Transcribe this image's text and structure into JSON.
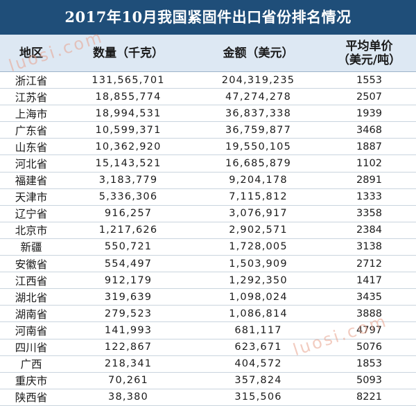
{
  "title": "2017年10月我国紧固件出口省份排名情况",
  "headers": {
    "region": "地区",
    "quantity": "数量（千克）",
    "amount": "金额（美元）",
    "unit_price_line1": "平均单价",
    "unit_price_line2": "（美元/吨）"
  },
  "rows": [
    {
      "region": "浙江省",
      "quantity": "131,565,701",
      "amount": "204,319,235",
      "price": "1553"
    },
    {
      "region": "江苏省",
      "quantity": "18,855,774",
      "amount": "47,274,278",
      "price": "2507"
    },
    {
      "region": "上海市",
      "quantity": "18,994,531",
      "amount": "36,837,338",
      "price": "1939"
    },
    {
      "region": "广东省",
      "quantity": "10,599,371",
      "amount": "36,759,877",
      "price": "3468"
    },
    {
      "region": "山东省",
      "quantity": "10,362,920",
      "amount": "19,550,105",
      "price": "1887"
    },
    {
      "region": "河北省",
      "quantity": "15,143,521",
      "amount": "16,685,879",
      "price": "1102"
    },
    {
      "region": "福建省",
      "quantity": "3,183,779",
      "amount": "9,204,178",
      "price": "2891"
    },
    {
      "region": "天津市",
      "quantity": "5,336,306",
      "amount": "7,115,812",
      "price": "1333"
    },
    {
      "region": "辽宁省",
      "quantity": "916,257",
      "amount": "3,076,917",
      "price": "3358"
    },
    {
      "region": "北京市",
      "quantity": "1,217,626",
      "amount": "2,902,571",
      "price": "2384"
    },
    {
      "region": "新疆",
      "quantity": "550,721",
      "amount": "1,728,005",
      "price": "3138"
    },
    {
      "region": "安徽省",
      "quantity": "554,497",
      "amount": "1,503,909",
      "price": "2712"
    },
    {
      "region": "江西省",
      "quantity": "912,179",
      "amount": "1,292,350",
      "price": "1417"
    },
    {
      "region": "湖北省",
      "quantity": "319,639",
      "amount": "1,098,024",
      "price": "3435"
    },
    {
      "region": "湖南省",
      "quantity": "279,523",
      "amount": "1,086,814",
      "price": "3888"
    },
    {
      "region": "河南省",
      "quantity": "141,993",
      "amount": "681,117",
      "price": "4797"
    },
    {
      "region": "四川省",
      "quantity": "122,867",
      "amount": "623,671",
      "price": "5076"
    },
    {
      "region": "广西",
      "quantity": "218,341",
      "amount": "404,572",
      "price": "1853"
    },
    {
      "region": "重庆市",
      "quantity": "70,261",
      "amount": "357,824",
      "price": "5093"
    },
    {
      "region": "陕西省",
      "quantity": "38,380",
      "amount": "315,506",
      "price": "8221"
    }
  ],
  "watermark": "luosi.com",
  "colors": {
    "title_bg": "#1f4e79",
    "header_bg": "#dde8f3",
    "watermark": "#e8a38e"
  }
}
